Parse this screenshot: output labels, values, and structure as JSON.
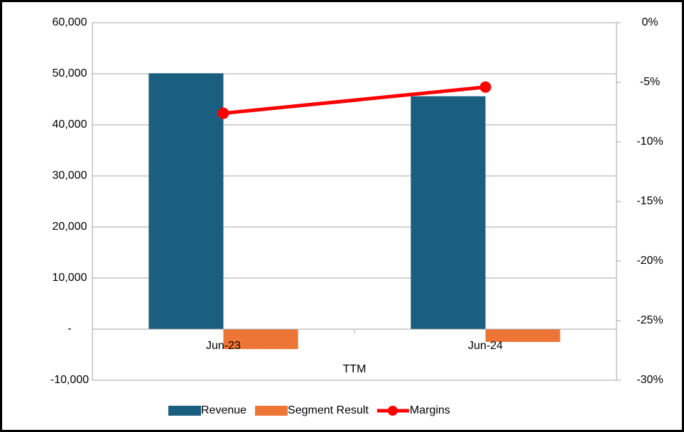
{
  "chart_data": {
    "type": "bar_line",
    "x_label": "TTM",
    "categories": [
      "Jun-23",
      "Jun-24"
    ],
    "series": [
      {
        "name": "Revenue",
        "type": "bar",
        "color": "#1a5e80",
        "values": [
          50100,
          45600
        ]
      },
      {
        "name": "Segment Result",
        "type": "bar",
        "color": "#ed7535",
        "values": [
          -3900,
          -2500
        ]
      },
      {
        "name": "Margins",
        "type": "line",
        "axis": "y2",
        "color": "#ff0000",
        "values": [
          -7.6,
          -5.4
        ]
      }
    ],
    "ylim": [
      -10000,
      60000
    ],
    "yticks": [
      {
        "value": -10000,
        "label": "-10,000"
      },
      {
        "value": 0,
        "label": "-"
      },
      {
        "value": 10000,
        "label": "10,000"
      },
      {
        "value": 20000,
        "label": "20,000"
      },
      {
        "value": 30000,
        "label": "30,000"
      },
      {
        "value": 40000,
        "label": "40,000"
      },
      {
        "value": 50000,
        "label": "50,000"
      },
      {
        "value": 60000,
        "label": "60,000"
      }
    ],
    "y2lim": [
      -30,
      0
    ],
    "y2ticks": [
      {
        "value": -30,
        "label": "-30%"
      },
      {
        "value": -25,
        "label": "-25%"
      },
      {
        "value": -20,
        "label": "-20%"
      },
      {
        "value": -15,
        "label": "-15%"
      },
      {
        "value": -10,
        "label": "-10%"
      },
      {
        "value": -5,
        "label": "-5%"
      },
      {
        "value": 0,
        "label": "0%"
      }
    ],
    "grid": true,
    "legend": "bottom"
  }
}
